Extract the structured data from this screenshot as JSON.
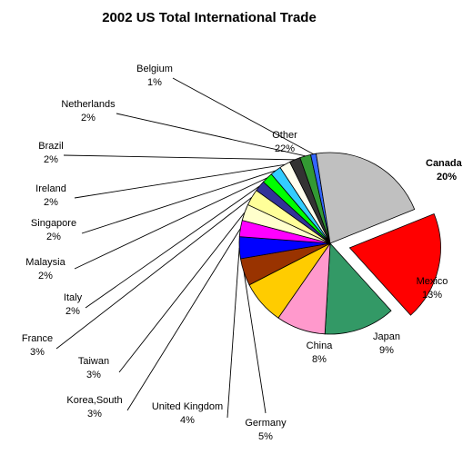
{
  "chart_data": {
    "type": "pie",
    "title": "2002 US Total International Trade",
    "slices": [
      {
        "name": "Canada",
        "value": 20,
        "pct_label": "20%",
        "color": "#ff0000",
        "exploded": true,
        "bold": true
      },
      {
        "name": "Mexico",
        "value": 13,
        "pct_label": "13%",
        "color": "#339966"
      },
      {
        "name": "Japan",
        "value": 9,
        "pct_label": "9%",
        "color": "#ff99cc"
      },
      {
        "name": "China",
        "value": 8,
        "pct_label": "8%",
        "color": "#ffcc00"
      },
      {
        "name": "Germany",
        "value": 5,
        "pct_label": "5%",
        "color": "#993300"
      },
      {
        "name": "United Kingdom",
        "value": 4,
        "pct_label": "4%",
        "color": "#0000ff"
      },
      {
        "name": "Korea,South",
        "value": 3,
        "pct_label": "3%",
        "color": "#ff00ff"
      },
      {
        "name": "Taiwan",
        "value": 3,
        "pct_label": "3%",
        "color": "#ffffcc"
      },
      {
        "name": "France",
        "value": 3,
        "pct_label": "3%",
        "color": "#ffff99"
      },
      {
        "name": "Italy",
        "value": 2,
        "pct_label": "2%",
        "color": "#333399"
      },
      {
        "name": "Malaysia",
        "value": 2,
        "pct_label": "2%",
        "color": "#00ff00"
      },
      {
        "name": "Singapore",
        "value": 2,
        "pct_label": "2%",
        "color": "#33ccff"
      },
      {
        "name": "Ireland",
        "value": 2,
        "pct_label": "2%",
        "color": "#ffffee"
      },
      {
        "name": "Brazil",
        "value": 2,
        "pct_label": "2%",
        "color": "#333333"
      },
      {
        "name": "Netherlands",
        "value": 2,
        "pct_label": "2%",
        "color": "#339933"
      },
      {
        "name": "Belgium",
        "value": 1,
        "pct_label": "1%",
        "color": "#3366ff"
      },
      {
        "name": "Other",
        "value": 22,
        "pct_label": "22%",
        "color": "#c0c0c0"
      }
    ]
  }
}
